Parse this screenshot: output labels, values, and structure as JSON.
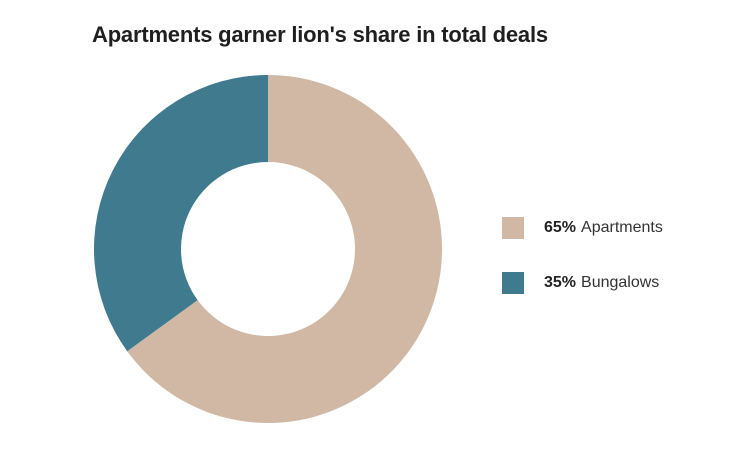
{
  "chart_data": {
    "type": "pie",
    "title": "Apartments garner lion's share in total deals",
    "legend_position": "right",
    "slices": [
      {
        "label": "Apartments",
        "value": 65,
        "value_label": "65%",
        "color": "#d1b8a5"
      },
      {
        "label": "Bungalows",
        "value": 35,
        "value_label": "35%",
        "color": "#3f7a8e"
      }
    ]
  }
}
